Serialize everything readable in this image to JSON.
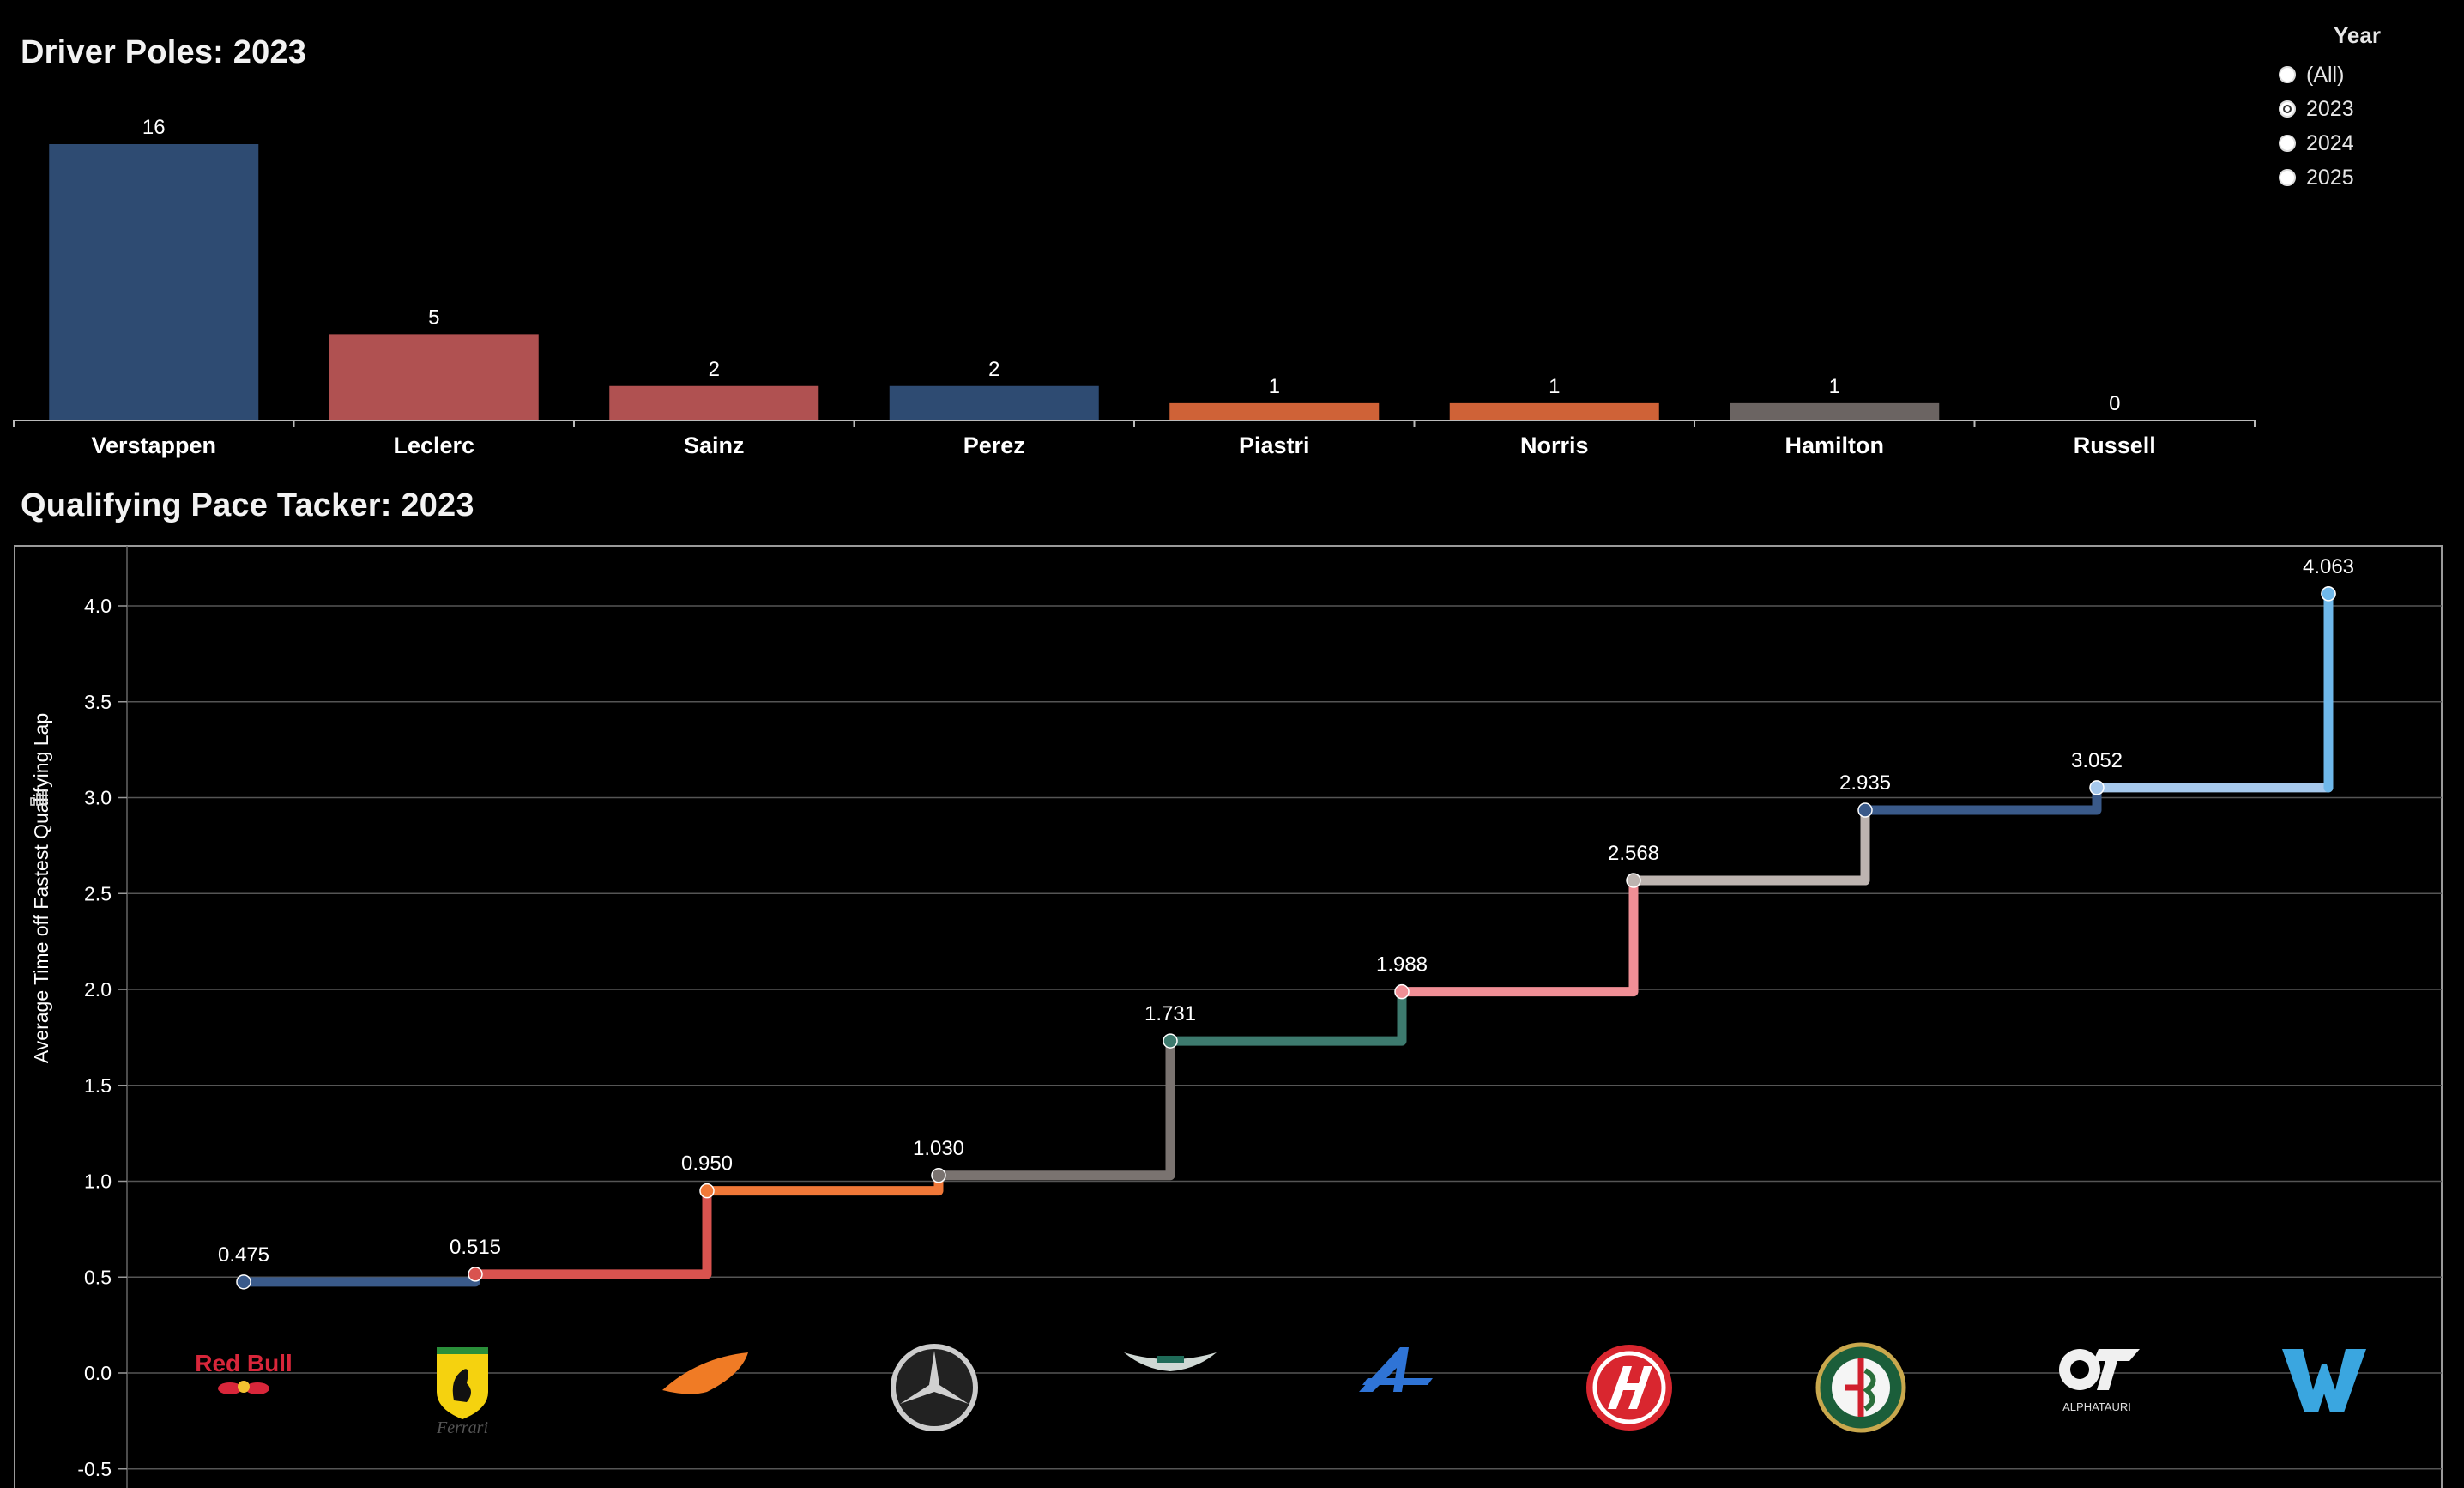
{
  "legend": {
    "title": "Year",
    "options": [
      {
        "label": "(All)",
        "selected": false
      },
      {
        "label": "2023",
        "selected": true
      },
      {
        "label": "2024",
        "selected": false
      },
      {
        "label": "2025",
        "selected": false
      }
    ]
  },
  "teams": [
    {
      "name": "Red Bull",
      "icon": "red-bull-logo"
    },
    {
      "name": "Ferrari",
      "icon": "ferrari-logo"
    },
    {
      "name": "McLaren",
      "icon": "mclaren-logo"
    },
    {
      "name": "Mercedes",
      "icon": "mercedes-logo"
    },
    {
      "name": "Aston Martin",
      "icon": "aston-martin-logo"
    },
    {
      "name": "Alpine",
      "icon": "alpine-logo"
    },
    {
      "name": "Haas",
      "icon": "haas-logo"
    },
    {
      "name": "Alfa Romeo",
      "icon": "alfa-romeo-logo"
    },
    {
      "name": "AlphaTauri",
      "icon": "alphatauri-logo"
    },
    {
      "name": "Williams",
      "icon": "williams-logo"
    }
  ],
  "logo_text": {
    "redbull": "Red Bull",
    "ferrari": "Ferrari",
    "alphatauri": "ALPHATAURI"
  },
  "chart_data": [
    {
      "type": "bar",
      "title": "Driver Poles: 2023",
      "categories": [
        "Verstappen",
        "Leclerc",
        "Sainz",
        "Perez",
        "Piastri",
        "Norris",
        "Hamilton",
        "Russell"
      ],
      "values": [
        16,
        5,
        2,
        2,
        1,
        1,
        1,
        0
      ],
      "colors": [
        "#2e4b72",
        "#b05151",
        "#b05151",
        "#2e4b72",
        "#cf6237",
        "#cf6237",
        "#6b6462",
        "#2e4b72"
      ],
      "ylim": [
        0,
        16
      ],
      "grid": false
    },
    {
      "type": "line",
      "title": "Qualifying Pace Tacker: 2023",
      "ylabel": "Average Time off Fastest Qualifying Lap",
      "xlabel": "",
      "line_style": "step",
      "x": [
        "Red Bull",
        "Ferrari",
        "McLaren",
        "Mercedes",
        "Aston Martin",
        "Alpine",
        "Haas",
        "Alfa Romeo",
        "AlphaTauri",
        "Williams"
      ],
      "values": [
        0.475,
        0.515,
        0.95,
        1.03,
        1.731,
        1.988,
        2.568,
        2.935,
        3.052,
        4.063
      ],
      "labels": [
        "0.475",
        "0.515",
        "0.950",
        "1.030",
        "1.731",
        "1.988",
        "2.568",
        "2.935",
        "3.052",
        "4.063"
      ],
      "colors": [
        "#3a5a8a",
        "#d9534f",
        "#f07838",
        "#7a7370",
        "#3d7a6e",
        "#f08f96",
        "#bdb4b0",
        "#3a5a8a",
        "#a6c8ec",
        "#6fb8ea"
      ],
      "ylim": [
        -0.5,
        4.3
      ],
      "yticks": [
        "4.0",
        "3.5",
        "3.0",
        "2.5",
        "2.0",
        "1.5",
        "1.0",
        "0.5",
        "0.0",
        "-0.5"
      ],
      "ytick_values": [
        4.0,
        3.5,
        3.0,
        2.5,
        2.0,
        1.5,
        1.0,
        0.5,
        0.0,
        -0.5
      ],
      "grid": true
    }
  ]
}
